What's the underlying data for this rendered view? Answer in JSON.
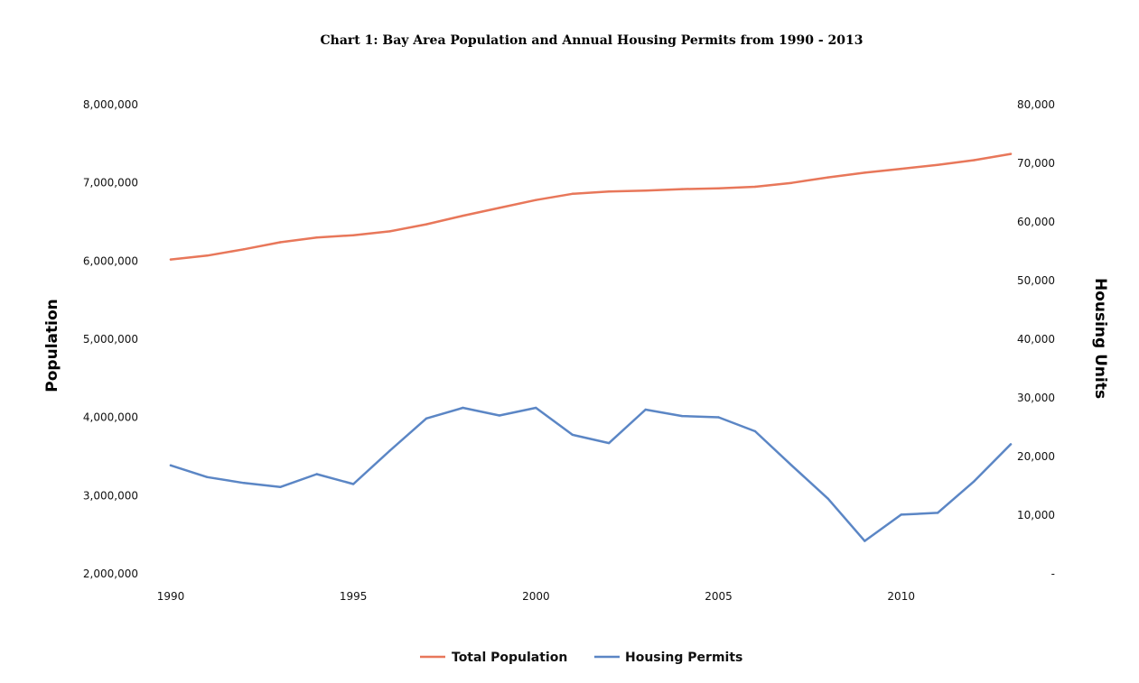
{
  "chart_data": {
    "type": "line",
    "title": "Chart 1: Bay Area Population and Annual Housing Permits from 1990 - 2013",
    "ylabel": "Population",
    "y2label": "Housing Units",
    "xlabel": "",
    "x": [
      1990,
      1991,
      1992,
      1993,
      1994,
      1995,
      1996,
      1997,
      1998,
      1999,
      2000,
      2001,
      2002,
      2003,
      2004,
      2005,
      2006,
      2007,
      2008,
      2009,
      2010,
      2011,
      2012,
      2013
    ],
    "x_ticks": [
      "1990",
      "1995",
      "2000",
      "2005",
      "2010"
    ],
    "ylim": [
      2000000,
      8000000
    ],
    "y2lim": [
      0,
      80000
    ],
    "y_ticks": [
      "2,000,000",
      "3,000,000",
      "4,000,000",
      "5,000,000",
      "6,000,000",
      "7,000,000",
      "8,000,000"
    ],
    "y2_ticks": [
      "-",
      "10,000",
      "20,000",
      "30,000",
      "40,000",
      "50,000",
      "60,000",
      "70,000",
      "80,000"
    ],
    "legend_position": "bottom",
    "grid": false,
    "series": [
      {
        "name": "Total Population",
        "axis": "left",
        "color": "#E8775A",
        "values": [
          6020000,
          6070000,
          6150000,
          6240000,
          6300000,
          6330000,
          6380000,
          6470000,
          6580000,
          6680000,
          6780000,
          6860000,
          6890000,
          6900000,
          6920000,
          6930000,
          6950000,
          7000000,
          7070000,
          7130000,
          7180000,
          7230000,
          7290000,
          7370000
        ]
      },
      {
        "name": "Housing Permits",
        "axis": "right",
        "color": "#5B86C5",
        "values": [
          18500,
          16500,
          15500,
          14800,
          17000,
          15300,
          21000,
          26500,
          28300,
          27000,
          28300,
          23700,
          22300,
          28000,
          26900,
          26700,
          24300,
          18500,
          12800,
          5600,
          10100,
          10400,
          15800,
          22100
        ]
      }
    ]
  }
}
